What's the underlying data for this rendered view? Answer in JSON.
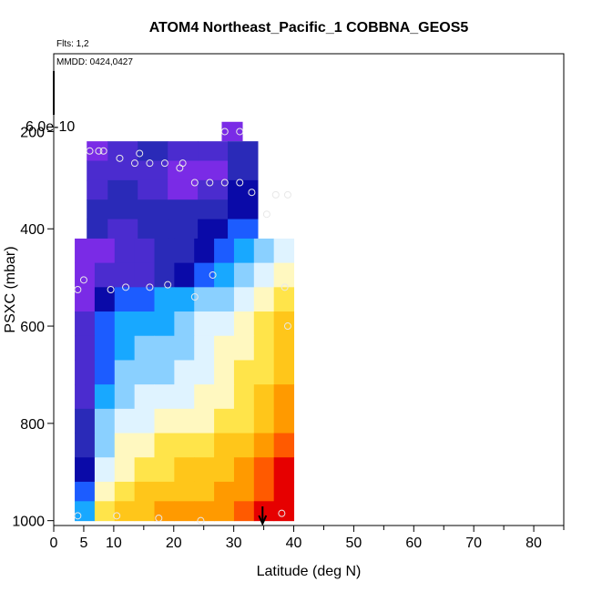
{
  "chart_data": {
    "type": "heatmap",
    "title": "ATOM4 Northeast_Pacific_1 COBBNA_GEOS5",
    "flights_label": "Flts: 1,2",
    "dates_label": "MMDD: 0424,0427",
    "xlabel": "Latitude (deg N)",
    "ylabel": "PSXC (mbar)",
    "xlim": [
      0,
      85
    ],
    "ylim": [
      1010,
      40
    ],
    "x_ticks": [
      0,
      5,
      10,
      20,
      30,
      40,
      50,
      60,
      70,
      80
    ],
    "x_tick_labels": [
      "0",
      "5",
      "10",
      "20",
      "30",
      "40",
      "50",
      "60",
      "70",
      "80"
    ],
    "x_minor_ticks": [
      15,
      25,
      35,
      45,
      55,
      65,
      75,
      85
    ],
    "y_ticks": [
      200,
      400,
      600,
      800,
      1000
    ],
    "y_tick_labels": [
      "200",
      "400",
      "600",
      "800",
      "1000"
    ],
    "colorbar_max_label": "6.0e-10",
    "grid": false,
    "colors": {
      "palette": [
        "#3a008a",
        "#6a1ed6",
        "#7a2be6",
        "#4b2ccf",
        "#2a2ab8",
        "#0a0aa8",
        "#1c5cff",
        "#18a8ff",
        "#8ad0ff",
        "#dff3ff",
        "#fff8c0",
        "#ffe44a",
        "#ffc61a",
        "#ff9a00",
        "#ff5a00",
        "#e60000"
      ]
    },
    "profiles": [
      {
        "lat_range": [
          28.0,
          31.5
        ],
        "p_range": [
          180,
          220
        ],
        "values": [
          2
        ]
      },
      {
        "lat_range": [
          5.5,
          34.0
        ],
        "p_range": [
          220,
          420
        ],
        "columns": [
          {
            "lat": [
              5.5,
              9.0
            ],
            "values": [
              2,
              3,
              3,
              4,
              4
            ]
          },
          {
            "lat": [
              9.0,
              14.0
            ],
            "values": [
              3,
              3,
              4,
              4,
              3
            ]
          },
          {
            "lat": [
              14.0,
              19.0
            ],
            "values": [
              4,
              3,
              3,
              4,
              4
            ]
          },
          {
            "lat": [
              19.0,
              24.0
            ],
            "values": [
              3,
              2,
              2,
              4,
              4
            ]
          },
          {
            "lat": [
              24.0,
              29.0
            ],
            "values": [
              3,
              2,
              3,
              4,
              5
            ]
          },
          {
            "lat": [
              29.0,
              34.0
            ],
            "values": [
              4,
              4,
              5,
              5,
              6
            ]
          }
        ]
      },
      {
        "lat_range": [
          3.5,
          40.0
        ],
        "p_range": [
          420,
          1000
        ],
        "rows": [
          {
            "p": [
              420,
              470
            ],
            "values": [
              2,
              2,
              3,
              3,
              4,
              4,
              5,
              6,
              7,
              8,
              9
            ]
          },
          {
            "p": [
              470,
              520
            ],
            "values": [
              2,
              3,
              3,
              3,
              4,
              5,
              6,
              7,
              8,
              9,
              10
            ]
          },
          {
            "p": [
              520,
              570
            ],
            "values": [
              2,
              5,
              6,
              6,
              7,
              7,
              8,
              8,
              9,
              10,
              11
            ]
          },
          {
            "p": [
              570,
              620
            ],
            "values": [
              3,
              6,
              7,
              7,
              7,
              8,
              9,
              9,
              10,
              11,
              12
            ]
          },
          {
            "p": [
              620,
              670
            ],
            "values": [
              3,
              6,
              7,
              8,
              8,
              8,
              9,
              10,
              10,
              11,
              12
            ]
          },
          {
            "p": [
              670,
              720
            ],
            "values": [
              3,
              6,
              8,
              8,
              8,
              9,
              9,
              10,
              11,
              11,
              12
            ]
          },
          {
            "p": [
              720,
              770
            ],
            "values": [
              3,
              7,
              8,
              9,
              9,
              9,
              10,
              10,
              11,
              12,
              13
            ]
          },
          {
            "p": [
              770,
              820
            ],
            "values": [
              4,
              8,
              9,
              9,
              10,
              10,
              10,
              11,
              11,
              12,
              13
            ]
          },
          {
            "p": [
              820,
              870
            ],
            "values": [
              4,
              8,
              10,
              10,
              11,
              11,
              11,
              12,
              12,
              13,
              14
            ]
          },
          {
            "p": [
              870,
              920
            ],
            "values": [
              5,
              9,
              10,
              11,
              11,
              12,
              12,
              12,
              13,
              14,
              15
            ]
          },
          {
            "p": [
              920,
              960
            ],
            "values": [
              6,
              10,
              11,
              12,
              12,
              12,
              12,
              13,
              13,
              14,
              15
            ]
          },
          {
            "p": [
              960,
              1000
            ],
            "values": [
              7,
              11,
              12,
              12,
              13,
              13,
              13,
              13,
              14,
              15,
              15
            ]
          }
        ]
      }
    ],
    "sample_points": [
      {
        "lat": 28.5,
        "p": 200
      },
      {
        "lat": 31.0,
        "p": 200
      },
      {
        "lat": 6.0,
        "p": 240
      },
      {
        "lat": 7.5,
        "p": 240
      },
      {
        "lat": 8.3,
        "p": 240
      },
      {
        "lat": 11.0,
        "p": 255
      },
      {
        "lat": 13.5,
        "p": 265
      },
      {
        "lat": 14.3,
        "p": 245
      },
      {
        "lat": 16.0,
        "p": 265
      },
      {
        "lat": 18.5,
        "p": 265
      },
      {
        "lat": 21.0,
        "p": 275
      },
      {
        "lat": 21.5,
        "p": 265
      },
      {
        "lat": 23.5,
        "p": 305
      },
      {
        "lat": 26.0,
        "p": 305
      },
      {
        "lat": 28.5,
        "p": 305
      },
      {
        "lat": 31.0,
        "p": 305
      },
      {
        "lat": 33.0,
        "p": 325
      },
      {
        "lat": 35.5,
        "p": 370
      },
      {
        "lat": 37.0,
        "p": 330
      },
      {
        "lat": 39.0,
        "p": 330
      },
      {
        "lat": 5.0,
        "p": 505
      },
      {
        "lat": 4.0,
        "p": 525
      },
      {
        "lat": 9.5,
        "p": 525
      },
      {
        "lat": 12.0,
        "p": 520
      },
      {
        "lat": 16.0,
        "p": 520
      },
      {
        "lat": 19.0,
        "p": 515
      },
      {
        "lat": 23.5,
        "p": 540
      },
      {
        "lat": 26.5,
        "p": 495
      },
      {
        "lat": 38.5,
        "p": 520
      },
      {
        "lat": 39.0,
        "p": 600
      },
      {
        "lat": 4.0,
        "p": 990
      },
      {
        "lat": 10.5,
        "p": 990
      },
      {
        "lat": 17.5,
        "p": 995
      },
      {
        "lat": 24.5,
        "p": 1000
      },
      {
        "lat": 38.0,
        "p": 985
      }
    ],
    "location_marker_lat": 34.8
  }
}
